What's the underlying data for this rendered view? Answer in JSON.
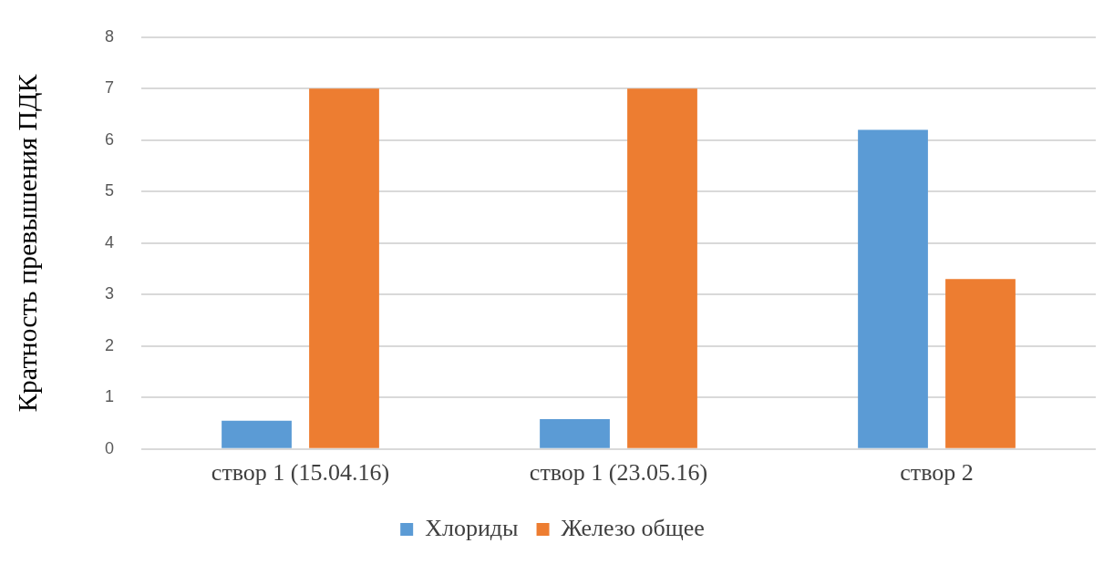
{
  "chart_data": {
    "type": "bar",
    "ylabel": "Кратность превышения ПДК",
    "categories": [
      "створ 1 (15.04.16)",
      "створ 1 (23.05.16)",
      "створ 2"
    ],
    "series": [
      {
        "name": "Хлориды",
        "color": "#5b9bd5",
        "values": [
          0.55,
          0.58,
          6.2
        ]
      },
      {
        "name": "Железо общее",
        "color": "#ed7d31",
        "values": [
          7,
          7,
          3.3
        ]
      }
    ],
    "ylim": [
      0,
      8
    ],
    "yticks": [
      0,
      1,
      2,
      3,
      4,
      5,
      6,
      7,
      8
    ],
    "grid": "y",
    "legend": "bottom"
  }
}
